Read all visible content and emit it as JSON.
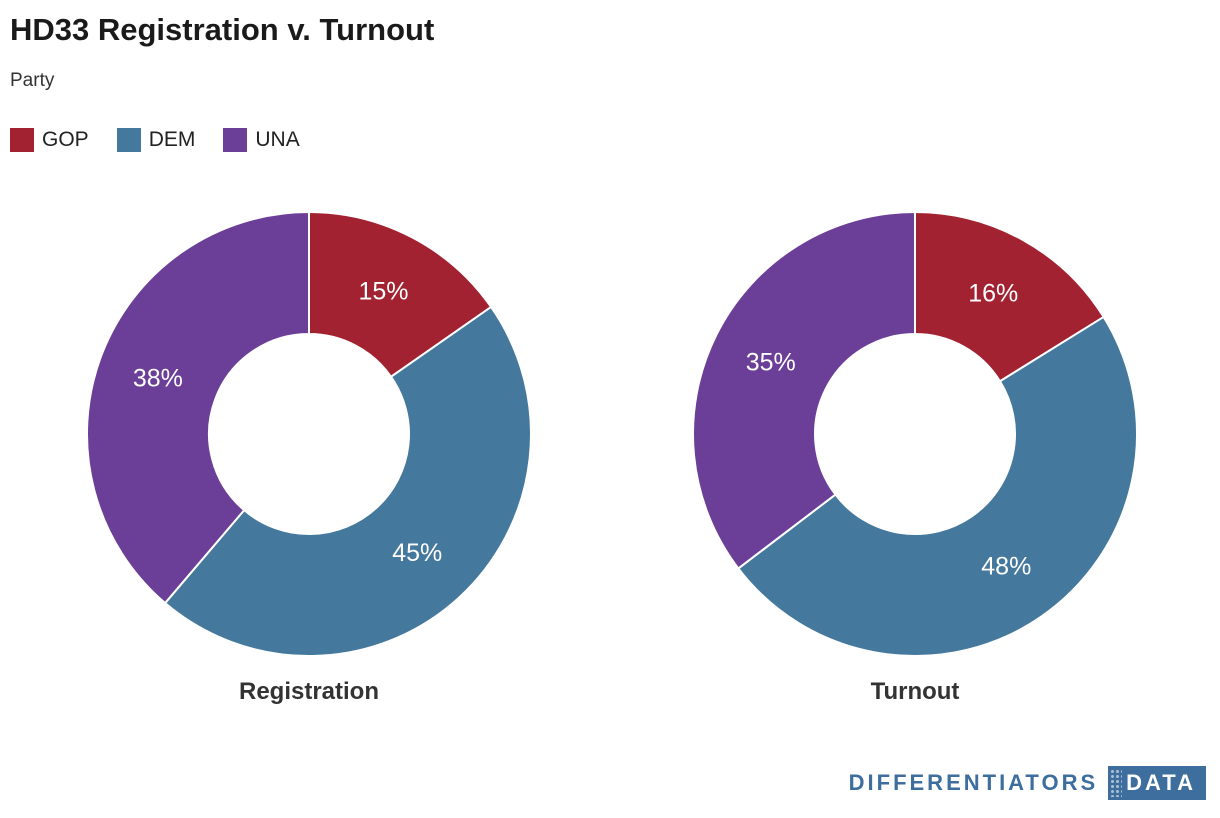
{
  "header": {
    "title": "HD33 Registration v. Turnout",
    "subtitle": "Party"
  },
  "legend": {
    "items": [
      {
        "label": "GOP",
        "color": "#a22231"
      },
      {
        "label": "DEM",
        "color": "#44789d"
      },
      {
        "label": "UNA",
        "color": "#6b3e98"
      }
    ]
  },
  "chart_data": [
    {
      "type": "pie",
      "subtype": "donut",
      "title": "Registration",
      "categories": [
        "GOP",
        "DEM",
        "UNA"
      ],
      "values": [
        15,
        45,
        38
      ],
      "labels": [
        "15%",
        "45%",
        "38%"
      ],
      "colors": [
        "#a22231",
        "#44789d",
        "#6b3e98"
      ],
      "legend_position": "top-left",
      "start_angle_deg": 0,
      "direction": "clockwise"
    },
    {
      "type": "pie",
      "subtype": "donut",
      "title": "Turnout",
      "categories": [
        "GOP",
        "DEM",
        "UNA"
      ],
      "values": [
        16,
        48,
        35
      ],
      "labels": [
        "16%",
        "48%",
        "35%"
      ],
      "colors": [
        "#a22231",
        "#44789d",
        "#6b3e98"
      ],
      "legend_position": "top-left",
      "start_angle_deg": 0,
      "direction": "clockwise"
    }
  ],
  "branding": {
    "name": "DIFFERENTIATORS",
    "product": "DATA",
    "color": "#3d6e9e"
  }
}
